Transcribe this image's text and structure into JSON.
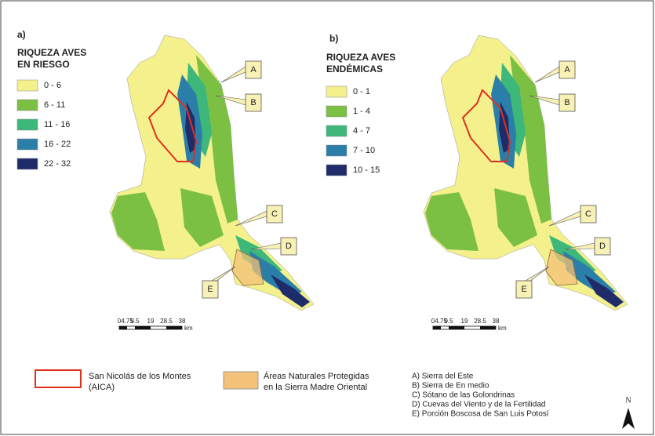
{
  "panels": [
    {
      "label": "a)",
      "title": [
        "RIQUEZA AVES",
        "EN RIESGO"
      ],
      "legend": [
        {
          "label": "0 - 6",
          "color": "#f4f08c"
        },
        {
          "label": "6 - 11",
          "color": "#7cc043"
        },
        {
          "label": "11 - 16",
          "color": "#3db87a"
        },
        {
          "label": "16 - 22",
          "color": "#2b7ea8"
        },
        {
          "label": "22 - 32",
          "color": "#1e2d6a"
        }
      ],
      "callouts": [
        "A",
        "B",
        "C",
        "D",
        "E"
      ],
      "scale": {
        "ticks": [
          0,
          4.75,
          9.5,
          19,
          28.5,
          38
        ],
        "unit": "km"
      }
    },
    {
      "label": "b)",
      "title": [
        "RIQUEZA AVES",
        "ENDÉMICAS"
      ],
      "legend": [
        {
          "label": "0 - 1",
          "color": "#f4f08c"
        },
        {
          "label": "1 - 4",
          "color": "#7cc043"
        },
        {
          "label": "4 - 7",
          "color": "#3db87a"
        },
        {
          "label": "7 - 10",
          "color": "#2b7ea8"
        },
        {
          "label": "10 - 15",
          "color": "#1e2d6a"
        }
      ],
      "callouts": [
        "A",
        "B",
        "C",
        "D",
        "E"
      ],
      "scale": {
        "ticks": [
          0,
          4.75,
          9.5,
          19,
          28.5,
          38
        ],
        "unit": "km"
      }
    }
  ],
  "footer": {
    "aica": [
      "San Nicolás de los Montes",
      "(AICA)"
    ],
    "anp": [
      "Áreas Naturales Protegidas",
      "en la Sierra Madre Oriental"
    ],
    "sites": [
      "A) Sierra del Este",
      "B) Sierra de En medio",
      "C) Sótano de las Golondrinas",
      "D) Cuevas del Viento y de la Fertilidad",
      "E) Porción Boscosa de San Luis Potosí"
    ],
    "north": "N"
  }
}
